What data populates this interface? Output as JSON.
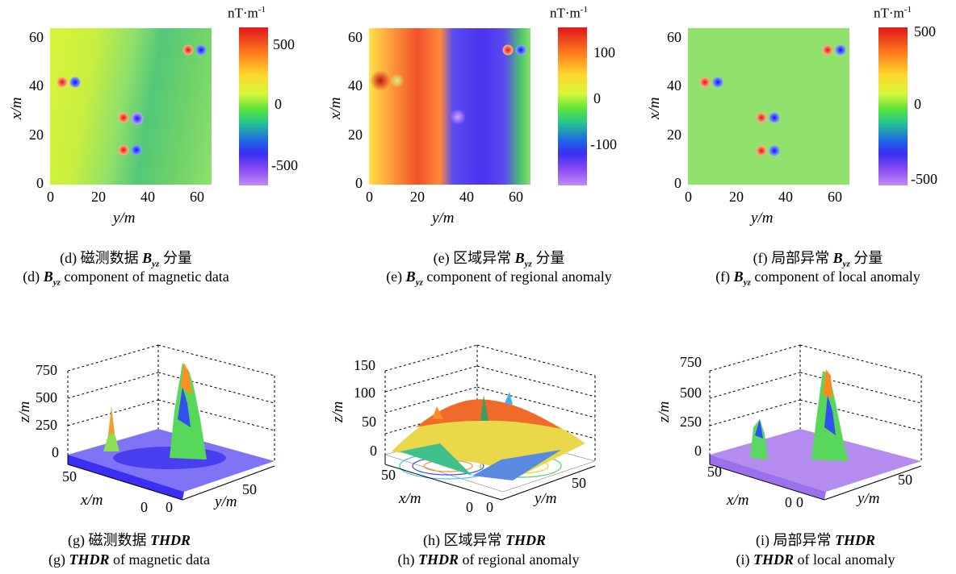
{
  "unit": "nT·m",
  "unit_exp": "-1",
  "top_panels": [
    {
      "id": "d",
      "y_ticks": [
        "60",
        "40",
        "20",
        "0"
      ],
      "x_ticks": [
        "0",
        "20",
        "40",
        "60"
      ],
      "y_label": "x/m",
      "x_label": "y/m",
      "colorbar_ticks": [
        "500",
        "0",
        "-500"
      ],
      "caption_cn_prefix": "(d) 磁测数据 ",
      "caption_cn_suffix": " 分量",
      "caption_en_prefix": "(d) ",
      "caption_en_suffix": " component of magnetic data"
    },
    {
      "id": "e",
      "y_ticks": [
        "60",
        "40",
        "20",
        "0"
      ],
      "x_ticks": [
        "0",
        "20",
        "40",
        "60"
      ],
      "y_label": "x/m",
      "x_label": "y/m",
      "colorbar_ticks": [
        "100",
        "0",
        "-100"
      ],
      "caption_cn_prefix": "(e) 区域异常 ",
      "caption_cn_suffix": " 分量",
      "caption_en_prefix": "(e) ",
      "caption_en_suffix": " component of regional anomaly"
    },
    {
      "id": "f",
      "y_ticks": [
        "60",
        "40",
        "20",
        "0"
      ],
      "x_ticks": [
        "0",
        "20",
        "40",
        "60"
      ],
      "y_label": "x/m",
      "x_label": "y/m",
      "colorbar_ticks": [
        "500",
        "0",
        "-500"
      ],
      "caption_cn_prefix": "(f) 局部异常 ",
      "caption_cn_suffix": " 分量",
      "caption_en_prefix": "(f) ",
      "caption_en_suffix": " component of local anomaly"
    }
  ],
  "byz_symbol": "B",
  "byz_sub": "yz",
  "bottom_panels": [
    {
      "id": "g",
      "z_ticks": [
        "750",
        "500",
        "250",
        "0"
      ],
      "z_label": "z/m",
      "x_ticks": [
        "50",
        "0"
      ],
      "x_label": "x/m",
      "y_ticks": [
        "0",
        "50"
      ],
      "y_label": "y/m",
      "caption_cn_prefix": "(g) 磁测数据 ",
      "caption_en_prefix": "(g) ",
      "caption_en_suffix": " of magnetic data"
    },
    {
      "id": "h",
      "z_ticks": [
        "150",
        "100",
        "50",
        "0"
      ],
      "z_label": "z/m",
      "x_ticks": [
        "50",
        "0"
      ],
      "x_label": "x/m",
      "y_ticks": [
        "0",
        "50"
      ],
      "y_label": "y/m",
      "caption_cn_prefix": "(h) 区域异常 ",
      "caption_en_prefix": "(h) ",
      "caption_en_suffix": " of regional anomaly"
    },
    {
      "id": "i",
      "z_ticks": [
        "750",
        "500",
        "250",
        "0"
      ],
      "z_label": "z/m",
      "x_ticks": [
        "50",
        "0"
      ],
      "x_label": "x/m",
      "y_ticks": [
        "0",
        "50"
      ],
      "y_label": "y/m",
      "caption_cn_prefix": "(i) 局部异常 ",
      "caption_en_prefix": "(i) ",
      "caption_en_suffix": " of local anomaly"
    }
  ],
  "thdr": "THDR",
  "colors": {
    "map_green": "#8fe06a",
    "positive": "#e0161b",
    "negative": "#1f2ff0",
    "surface_blue": "#3a2ff2",
    "surface_purple": "#b48cf0"
  }
}
